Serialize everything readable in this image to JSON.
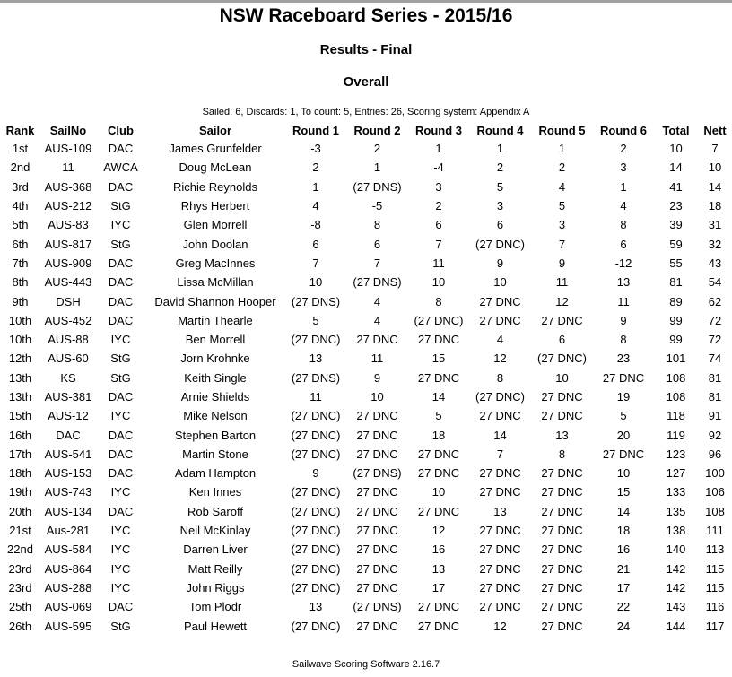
{
  "page": {
    "title": "NSW Raceboard Series - 2015/16",
    "subtitle": "Results - Final",
    "section": "Overall",
    "meta": "Sailed: 6, Discards: 1, To count: 5, Entries: 26, Scoring system: Appendix A",
    "footer": "Sailwave Scoring Software 2.16.7"
  },
  "colors": {
    "top_bar": "#a0a0a0",
    "text": "#000000",
    "background": "#ffffff"
  },
  "table": {
    "column_keys": [
      "rank",
      "sailno",
      "club",
      "sailor",
      "round1",
      "round2",
      "round3",
      "round4",
      "round5",
      "round6",
      "total",
      "nett"
    ],
    "columns": [
      "Rank",
      "SailNo",
      "Club",
      "Sailor",
      "Round 1",
      "Round 2",
      "Round 3",
      "Round 4",
      "Round 5",
      "Round 6",
      "Total",
      "Nett"
    ],
    "rows": [
      [
        "1st",
        "AUS-109",
        "DAC",
        "James Grunfelder",
        "-3",
        "2",
        "1",
        "1",
        "1",
        "2",
        "10",
        "7"
      ],
      [
        "2nd",
        "11",
        "AWCA",
        "Doug McLean",
        "2",
        "1",
        "-4",
        "2",
        "2",
        "3",
        "14",
        "10"
      ],
      [
        "3rd",
        "AUS-368",
        "DAC",
        "Richie Reynolds",
        "1",
        "(27 DNS)",
        "3",
        "5",
        "4",
        "1",
        "41",
        "14"
      ],
      [
        "4th",
        "AUS-212",
        "StG",
        "Rhys Herbert",
        "4",
        "-5",
        "2",
        "3",
        "5",
        "4",
        "23",
        "18"
      ],
      [
        "5th",
        "AUS-83",
        "IYC",
        "Glen Morrell",
        "-8",
        "8",
        "6",
        "6",
        "3",
        "8",
        "39",
        "31"
      ],
      [
        "6th",
        "AUS-817",
        "StG",
        "John Doolan",
        "6",
        "6",
        "7",
        "(27 DNC)",
        "7",
        "6",
        "59",
        "32"
      ],
      [
        "7th",
        "AUS-909",
        "DAC",
        "Greg MacInnes",
        "7",
        "7",
        "11",
        "9",
        "9",
        "-12",
        "55",
        "43"
      ],
      [
        "8th",
        "AUS-443",
        "DAC",
        "Lissa McMillan",
        "10",
        "(27 DNS)",
        "10",
        "10",
        "11",
        "13",
        "81",
        "54"
      ],
      [
        "9th",
        "DSH",
        "DAC",
        "David Shannon Hooper",
        "(27 DNS)",
        "4",
        "8",
        "27 DNC",
        "12",
        "11",
        "89",
        "62"
      ],
      [
        "10th",
        "AUS-452",
        "DAC",
        "Martin Thearle",
        "5",
        "4",
        "(27 DNC)",
        "27 DNC",
        "27 DNC",
        "9",
        "99",
        "72"
      ],
      [
        "10th",
        "AUS-88",
        "IYC",
        "Ben Morrell",
        "(27 DNC)",
        "27 DNC",
        "27 DNC",
        "4",
        "6",
        "8",
        "99",
        "72"
      ],
      [
        "12th",
        "AUS-60",
        "StG",
        "Jorn Krohnke",
        "13",
        "11",
        "15",
        "12",
        "(27 DNC)",
        "23",
        "101",
        "74"
      ],
      [
        "13th",
        "KS",
        "StG",
        "Keith Single",
        "(27 DNS)",
        "9",
        "27 DNC",
        "8",
        "10",
        "27 DNC",
        "108",
        "81"
      ],
      [
        "13th",
        "AUS-381",
        "DAC",
        "Arnie Shields",
        "11",
        "10",
        "14",
        "(27 DNC)",
        "27 DNC",
        "19",
        "108",
        "81"
      ],
      [
        "15th",
        "AUS-12",
        "IYC",
        "Mike Nelson",
        "(27 DNC)",
        "27 DNC",
        "5",
        "27 DNC",
        "27 DNC",
        "5",
        "118",
        "91"
      ],
      [
        "16th",
        "DAC",
        "DAC",
        "Stephen Barton",
        "(27 DNC)",
        "27 DNC",
        "18",
        "14",
        "13",
        "20",
        "119",
        "92"
      ],
      [
        "17th",
        "AUS-541",
        "DAC",
        "Martin Stone",
        "(27 DNC)",
        "27 DNC",
        "27 DNC",
        "7",
        "8",
        "27 DNC",
        "123",
        "96"
      ],
      [
        "18th",
        "AUS-153",
        "DAC",
        "Adam Hampton",
        "9",
        "(27 DNS)",
        "27 DNC",
        "27 DNC",
        "27 DNC",
        "10",
        "127",
        "100"
      ],
      [
        "19th",
        "AUS-743",
        "IYC",
        "Ken Innes",
        "(27 DNC)",
        "27 DNC",
        "10",
        "27 DNC",
        "27 DNC",
        "15",
        "133",
        "106"
      ],
      [
        "20th",
        "AUS-134",
        "DAC",
        "Rob Saroff",
        "(27 DNC)",
        "27 DNC",
        "27 DNC",
        "13",
        "27 DNC",
        "14",
        "135",
        "108"
      ],
      [
        "21st",
        "Aus-281",
        "IYC",
        "Neil McKinlay",
        "(27 DNC)",
        "27 DNC",
        "12",
        "27 DNC",
        "27 DNC",
        "18",
        "138",
        "111"
      ],
      [
        "22nd",
        "AUS-584",
        "IYC",
        "Darren Liver",
        "(27 DNC)",
        "27 DNC",
        "16",
        "27 DNC",
        "27 DNC",
        "16",
        "140",
        "113"
      ],
      [
        "23rd",
        "AUS-864",
        "IYC",
        "Matt Reilly",
        "(27 DNC)",
        "27 DNC",
        "13",
        "27 DNC",
        "27 DNC",
        "21",
        "142",
        "115"
      ],
      [
        "23rd",
        "AUS-288",
        "IYC",
        "John Riggs",
        "(27 DNC)",
        "27 DNC",
        "17",
        "27 DNC",
        "27 DNC",
        "17",
        "142",
        "115"
      ],
      [
        "25th",
        "AUS-069",
        "DAC",
        "Tom Plodr",
        "13",
        "(27 DNS)",
        "27 DNC",
        "27 DNC",
        "27 DNC",
        "22",
        "143",
        "116"
      ],
      [
        "26th",
        "AUS-595",
        "StG",
        "Paul Hewett",
        "(27 DNC)",
        "27 DNC",
        "27 DNC",
        "12",
        "27 DNC",
        "24",
        "144",
        "117"
      ]
    ]
  }
}
